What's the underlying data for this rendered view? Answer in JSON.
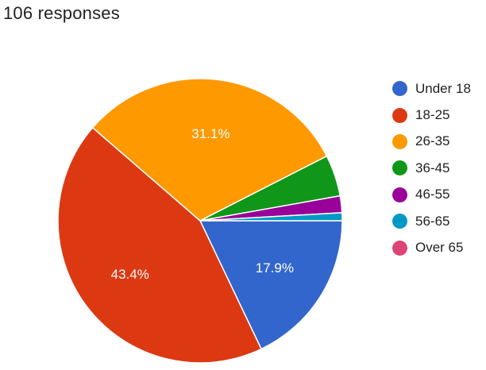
{
  "header": {
    "responses_text": "106 responses"
  },
  "chart_data": {
    "type": "pie",
    "categories": [
      "Under 18",
      "18-25",
      "26-35",
      "36-45",
      "46-55",
      "56-65",
      "Over 65"
    ],
    "values": [
      17.9,
      43.4,
      31.1,
      4.7,
      1.9,
      0.9,
      0
    ],
    "value_labels": [
      "17.9%",
      "43.4%",
      "31.1%",
      "",
      "",
      "",
      ""
    ],
    "colors": [
      "#3366cc",
      "#dc3912",
      "#ff9900",
      "#109618",
      "#990099",
      "#0099c6",
      "#dd4477"
    ],
    "legend_position": "right"
  }
}
